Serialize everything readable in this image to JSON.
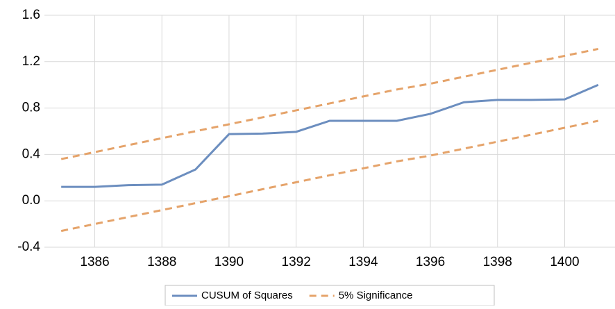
{
  "chart_data": {
    "type": "line",
    "x": [
      1385,
      1386,
      1387,
      1388,
      1389,
      1390,
      1391,
      1392,
      1393,
      1394,
      1395,
      1396,
      1397,
      1398,
      1399,
      1400,
      1401
    ],
    "series": [
      {
        "name": "CUSUM of Squares",
        "color": "#6c8ebf",
        "dash": "solid",
        "values": [
          0.12,
          0.12,
          0.135,
          0.14,
          0.27,
          0.575,
          0.58,
          0.595,
          0.69,
          0.69,
          0.69,
          0.75,
          0.85,
          0.87,
          0.87,
          0.875,
          1.0
        ]
      },
      {
        "name": "5% Significance",
        "color": "#e5a36a",
        "dash": "dashed",
        "values": [
          0.36,
          0.42,
          0.48,
          0.54,
          0.6,
          0.66,
          0.72,
          0.78,
          0.84,
          0.9,
          0.96,
          1.01,
          1.07,
          1.13,
          1.19,
          1.25,
          1.31
        ]
      },
      {
        "name": "5% Significance",
        "color": "#e5a36a",
        "dash": "dashed",
        "legend": false,
        "values": [
          -0.26,
          -0.2,
          -0.14,
          -0.08,
          -0.02,
          0.04,
          0.1,
          0.16,
          0.22,
          0.28,
          0.34,
          0.39,
          0.45,
          0.51,
          0.57,
          0.63,
          0.69
        ]
      }
    ],
    "xlim": [
      1384.5,
      1401.5
    ],
    "xticks": [
      1386,
      1388,
      1390,
      1392,
      1394,
      1396,
      1398,
      1400
    ],
    "ylim": [
      -0.4,
      1.6
    ],
    "yticks": [
      -0.4,
      {
        "value": 0,
        "label": "0.0"
      },
      0.4,
      0.8,
      1.2,
      1.6
    ],
    "grid": true,
    "legend": "bottom"
  }
}
